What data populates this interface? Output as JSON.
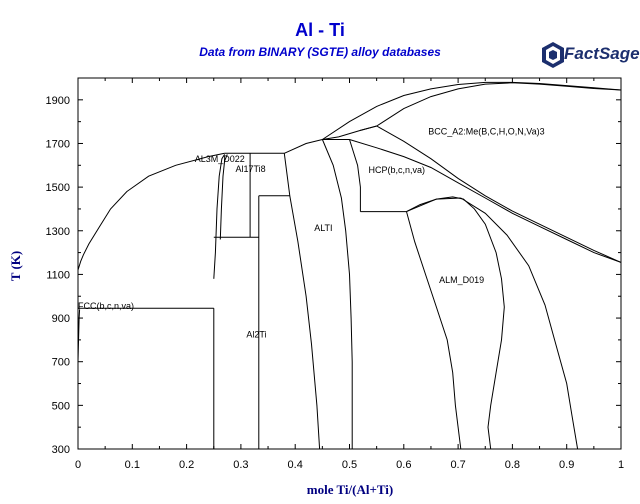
{
  "chart_data": {
    "type": "line",
    "title": "Al - Ti",
    "subtitle": "Data from BINARY (SGTE) alloy databases",
    "xlabel": "mole Ti/(Al+Ti)",
    "ylabel": "T (K)",
    "xlim": [
      0,
      1
    ],
    "ylim": [
      300,
      2000
    ],
    "xticks": [
      0,
      0.1,
      0.2,
      0.3,
      0.4,
      0.5,
      0.6,
      0.7,
      0.8,
      0.9,
      1
    ],
    "yticks": [
      300,
      500,
      700,
      900,
      1100,
      1300,
      1500,
      1700,
      1900
    ],
    "grid": false,
    "phase_labels": [
      {
        "text": "BCC_A2:Me(B,C,H,O,N,Va)3",
        "x": 0.645,
        "y": 1740
      },
      {
        "text": "HCP(b,c,n,va)",
        "x": 0.535,
        "y": 1565
      },
      {
        "text": "AL3M_D022",
        "x": 0.215,
        "y": 1615
      },
      {
        "text": "Al17Ti8",
        "x": 0.29,
        "y": 1570
      },
      {
        "text": "ALTI",
        "x": 0.435,
        "y": 1300
      },
      {
        "text": "ALM_D019",
        "x": 0.665,
        "y": 1060
      },
      {
        "text": "FCC(b,c,n,va)",
        "x": 0.0,
        "y": 942
      },
      {
        "text": "Al2Ti",
        "x": 0.31,
        "y": 810
      }
    ],
    "boundaries": [
      {
        "name": "liquidus-left",
        "points": [
          [
            0,
            1120
          ],
          [
            0.005,
            1160
          ],
          [
            0.01,
            1190
          ],
          [
            0.02,
            1240
          ],
          [
            0.04,
            1320
          ],
          [
            0.06,
            1400
          ],
          [
            0.09,
            1480
          ],
          [
            0.13,
            1550
          ],
          [
            0.18,
            1600
          ],
          [
            0.24,
            1640
          ],
          [
            0.27,
            1655
          ]
        ]
      },
      {
        "name": "fcc-solidus",
        "points": [
          [
            0,
            700
          ],
          [
            0.002,
            900
          ],
          [
            0.003,
            940
          ]
        ]
      },
      {
        "name": "al3ti-left",
        "points": [
          [
            0.25,
            1080
          ],
          [
            0.253,
            1200
          ],
          [
            0.256,
            1400
          ],
          [
            0.26,
            1550
          ],
          [
            0.265,
            1630
          ],
          [
            0.27,
            1650
          ]
        ]
      },
      {
        "name": "al3ti-right",
        "points": [
          [
            0.262,
            1260
          ],
          [
            0.264,
            1400
          ],
          [
            0.267,
            1550
          ],
          [
            0.27,
            1620
          ],
          [
            0.275,
            1650
          ]
        ]
      },
      {
        "name": "peritectic-1655",
        "points": [
          [
            0.27,
            1655
          ],
          [
            0.38,
            1655
          ]
        ]
      },
      {
        "name": "al17ti8-left",
        "points": [
          [
            0.317,
            1270
          ],
          [
            0.317,
            1655
          ]
        ]
      },
      {
        "name": "al2ti-line",
        "points": [
          [
            0.333,
            300
          ],
          [
            0.333,
            1460
          ]
        ]
      },
      {
        "name": "al2ti-top",
        "points": [
          [
            0.333,
            1460
          ],
          [
            0.39,
            1460
          ]
        ]
      },
      {
        "name": "al2ti-peritectoid",
        "points": [
          [
            0.25,
            1270
          ],
          [
            0.333,
            1270
          ]
        ]
      },
      {
        "name": "tial-left",
        "points": [
          [
            0.38,
            1655
          ],
          [
            0.39,
            1460
          ],
          [
            0.405,
            1250
          ],
          [
            0.42,
            1000
          ],
          [
            0.43,
            780
          ],
          [
            0.44,
            500
          ],
          [
            0.445,
            300
          ]
        ]
      },
      {
        "name": "al3ti-vertical",
        "points": [
          [
            0.25,
            300
          ],
          [
            0.25,
            945
          ]
        ]
      },
      {
        "name": "eutectic-945",
        "points": [
          [
            0,
            945
          ],
          [
            0.25,
            945
          ]
        ]
      },
      {
        "name": "liquidus-peritectic",
        "points": [
          [
            0.38,
            1655
          ],
          [
            0.42,
            1700
          ],
          [
            0.45,
            1718
          ],
          [
            0.48,
            1730
          ],
          [
            0.52,
            1760
          ],
          [
            0.55,
            1780
          ]
        ]
      },
      {
        "name": "tial-top-left",
        "points": [
          [
            0.45,
            1718
          ],
          [
            0.5,
            1718
          ]
        ]
      },
      {
        "name": "tial-right",
        "points": [
          [
            0.45,
            1718
          ],
          [
            0.47,
            1600
          ],
          [
            0.485,
            1450
          ],
          [
            0.493,
            1300
          ],
          [
            0.5,
            1100
          ],
          [
            0.503,
            900
          ],
          [
            0.505,
            700
          ],
          [
            0.505,
            300
          ]
        ]
      },
      {
        "name": "hcp-tial-left",
        "points": [
          [
            0.5,
            1718
          ],
          [
            0.515,
            1600
          ],
          [
            0.52,
            1500
          ],
          [
            0.52,
            1388
          ]
        ]
      },
      {
        "name": "eutectoid-1390",
        "points": [
          [
            0.52,
            1388
          ],
          [
            0.605,
            1388
          ]
        ]
      },
      {
        "name": "ti3al-left",
        "points": [
          [
            0.605,
            1388
          ],
          [
            0.62,
            1250
          ],
          [
            0.64,
            1100
          ],
          [
            0.66,
            950
          ],
          [
            0.68,
            800
          ],
          [
            0.69,
            650
          ],
          [
            0.695,
            500
          ],
          [
            0.7,
            400
          ],
          [
            0.705,
            300
          ]
        ]
      },
      {
        "name": "ti3al-dome",
        "points": [
          [
            0.605,
            1388
          ],
          [
            0.63,
            1420
          ],
          [
            0.66,
            1445
          ],
          [
            0.69,
            1455
          ],
          [
            0.71,
            1445
          ],
          [
            0.73,
            1400
          ],
          [
            0.75,
            1330
          ],
          [
            0.77,
            1200
          ],
          [
            0.78,
            1080
          ],
          [
            0.785,
            950
          ],
          [
            0.78,
            800
          ],
          [
            0.77,
            650
          ],
          [
            0.76,
            500
          ],
          [
            0.755,
            400
          ],
          [
            0.76,
            300
          ]
        ]
      },
      {
        "name": "hcp-ti3al-right",
        "points": [
          [
            0.705,
            1450
          ],
          [
            0.75,
            1380
          ],
          [
            0.79,
            1280
          ],
          [
            0.83,
            1140
          ],
          [
            0.86,
            960
          ],
          [
            0.88,
            780
          ],
          [
            0.9,
            600
          ],
          [
            0.91,
            450
          ],
          [
            0.92,
            300
          ]
        ]
      },
      {
        "name": "bcc-hcp-upper",
        "points": [
          [
            0.52,
            1760
          ],
          [
            0.55,
            1780
          ],
          [
            0.6,
            1710
          ],
          [
            0.65,
            1630
          ],
          [
            0.7,
            1540
          ],
          [
            0.75,
            1460
          ],
          [
            0.8,
            1390
          ],
          [
            0.85,
            1330
          ],
          [
            0.9,
            1270
          ],
          [
            0.95,
            1210
          ],
          [
            1,
            1155
          ]
        ]
      },
      {
        "name": "bcc-hcp-lower",
        "points": [
          [
            0.5,
            1718
          ],
          [
            0.55,
            1680
          ],
          [
            0.6,
            1640
          ],
          [
            0.65,
            1590
          ],
          [
            0.7,
            1520
          ],
          [
            0.75,
            1450
          ],
          [
            0.8,
            1380
          ],
          [
            0.85,
            1320
          ],
          [
            0.9,
            1260
          ],
          [
            0.95,
            1200
          ],
          [
            1,
            1155
          ]
        ]
      },
      {
        "name": "liquidus-bcc-upper",
        "points": [
          [
            0.45,
            1718
          ],
          [
            0.5,
            1800
          ],
          [
            0.55,
            1870
          ],
          [
            0.6,
            1920
          ],
          [
            0.65,
            1950
          ],
          [
            0.7,
            1970
          ],
          [
            0.75,
            1980
          ],
          [
            0.8,
            1980
          ],
          [
            0.85,
            1975
          ],
          [
            0.9,
            1965
          ],
          [
            0.95,
            1955
          ],
          [
            1,
            1945
          ]
        ]
      },
      {
        "name": "liquidus-bcc-lower",
        "points": [
          [
            0.55,
            1780
          ],
          [
            0.6,
            1860
          ],
          [
            0.65,
            1915
          ],
          [
            0.7,
            1950
          ],
          [
            0.75,
            1972
          ],
          [
            0.8,
            1978
          ],
          [
            0.85,
            1972
          ],
          [
            0.9,
            1962
          ],
          [
            0.95,
            1952
          ],
          [
            1,
            1945
          ]
        ]
      },
      {
        "name": "hcp-ti3al-tie",
        "points": [
          [
            0.605,
            1388
          ],
          [
            0.66,
            1445
          ],
          [
            0.705,
            1450
          ]
        ]
      }
    ],
    "colors": {
      "axes": "#000000",
      "title": "#0000cc",
      "axis_title": "#000080",
      "lines": "#000000"
    }
  },
  "logo": {
    "text": "FactSage",
    "suffix": "™",
    "color": "#1c2f6e"
  }
}
